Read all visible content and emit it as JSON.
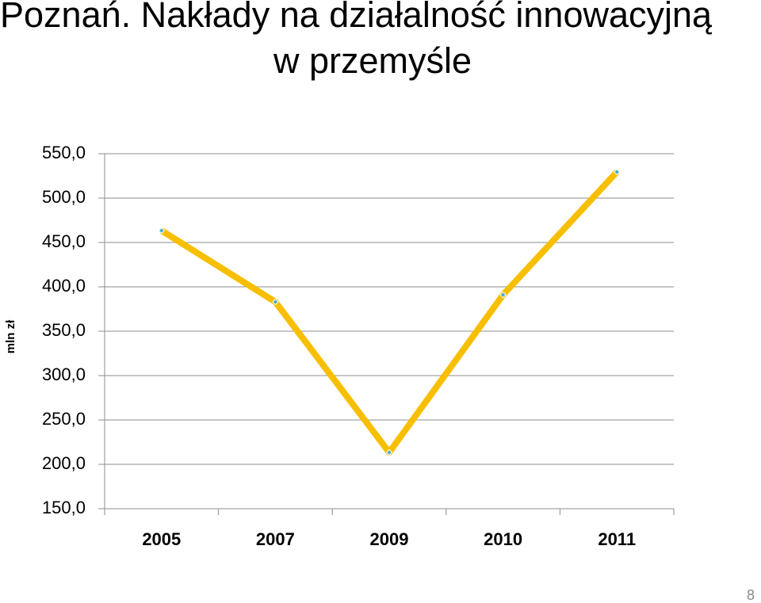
{
  "chart_data": {
    "type": "line",
    "title": "Poznań. Nakłady na działalność innowacyjną",
    "subtitle": "w przemyśle",
    "y_label": "mln zł",
    "categories": [
      "2005",
      "2007",
      "2009",
      "2010",
      "2011"
    ],
    "values": [
      463.4,
      383.0,
      213.4,
      391.0,
      529.5
    ],
    "color": "#f7bf00",
    "marker_color": "#4bacc6",
    "ylim": [
      150,
      550
    ],
    "yticks": [
      {
        "value": 150,
        "label": "150,0"
      },
      {
        "value": 200,
        "label": "200,0"
      },
      {
        "value": 250,
        "label": "250,0"
      },
      {
        "value": 300,
        "label": "300,0"
      },
      {
        "value": 350,
        "label": "350,0"
      },
      {
        "value": 400,
        "label": "400,0"
      },
      {
        "value": 450,
        "label": "450,0"
      },
      {
        "value": 500,
        "label": "500,0"
      },
      {
        "value": 550,
        "label": "550,0"
      }
    ],
    "grid": true
  },
  "page_number": "8"
}
